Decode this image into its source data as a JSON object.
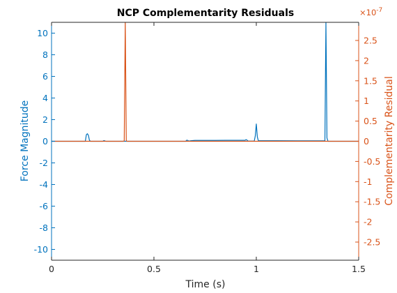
{
  "chart_data": {
    "type": "line",
    "title": "NCP Complementarity Residuals",
    "xlabel": "Time (s)",
    "ylabel_left": "Force Magnitude",
    "ylabel_right": "Complementarity Residual",
    "right_exponent_base": "×10",
    "right_exponent_power": "-7",
    "xlim": [
      0,
      1.5
    ],
    "ylim_left": [
      -11,
      11
    ],
    "ylim_right": [
      -2.95e-07,
      2.95e-07
    ],
    "x_ticks": [
      0,
      0.5,
      1,
      1.5
    ],
    "x_tick_labels": [
      "0",
      "0.5",
      "1",
      "1.5"
    ],
    "y_left_ticks": [
      -10,
      -8,
      -6,
      -4,
      -2,
      0,
      2,
      4,
      6,
      8,
      10
    ],
    "y_left_tick_labels": [
      "-10",
      "-8",
      "-6",
      "-4",
      "-2",
      "0",
      "2",
      "4",
      "6",
      "8",
      "10"
    ],
    "y_right_ticks": [
      -2.5,
      -2,
      -1.5,
      -1,
      -0.5,
      0,
      0.5,
      1,
      1.5,
      2,
      2.5
    ],
    "y_right_tick_labels": [
      "-2.5",
      "-2",
      "-1.5",
      "-1",
      "-0.5",
      "0",
      "0.5",
      "1",
      "1.5",
      "2",
      "2.5"
    ],
    "grid": false,
    "colors": {
      "left": "#0072BD",
      "right": "#D95319",
      "axis": "#262626"
    },
    "series": [
      {
        "axis": "left",
        "color": "#0072BD",
        "x": [
          0,
          0.165,
          0.17,
          0.175,
          0.18,
          0.185,
          0.19,
          0.25,
          0.255,
          0.26,
          0.265,
          0.655,
          0.66,
          0.665,
          0.67,
          0.68,
          0.7,
          0.75,
          0.8,
          0.85,
          0.9,
          0.945,
          0.95,
          0.955,
          0.96,
          0.99,
          0.995,
          1.0,
          1.005,
          1.01,
          1.02,
          1.1,
          1.2,
          1.3,
          1.335,
          1.34,
          1.345,
          1.35,
          1.5
        ],
        "y": [
          0,
          0,
          0.6,
          0.7,
          0.55,
          0.1,
          0,
          0,
          0.06,
          0.04,
          0,
          0,
          0.1,
          0.08,
          0.02,
          0.05,
          0.08,
          0.08,
          0.08,
          0.09,
          0.09,
          0.09,
          0.15,
          0.1,
          0.02,
          0.02,
          0.5,
          1.6,
          0.4,
          0.05,
          0.05,
          0.05,
          0.04,
          0.04,
          0.05,
          11,
          0.3,
          0,
          0
        ]
      },
      {
        "axis": "right",
        "color": "#D95319",
        "x": [
          0,
          0.35,
          0.355,
          0.36,
          0.365,
          0.37,
          1.5
        ],
        "y": [
          0,
          0,
          1e-09,
          3e-07,
          1e-09,
          0,
          0
        ]
      }
    ]
  }
}
